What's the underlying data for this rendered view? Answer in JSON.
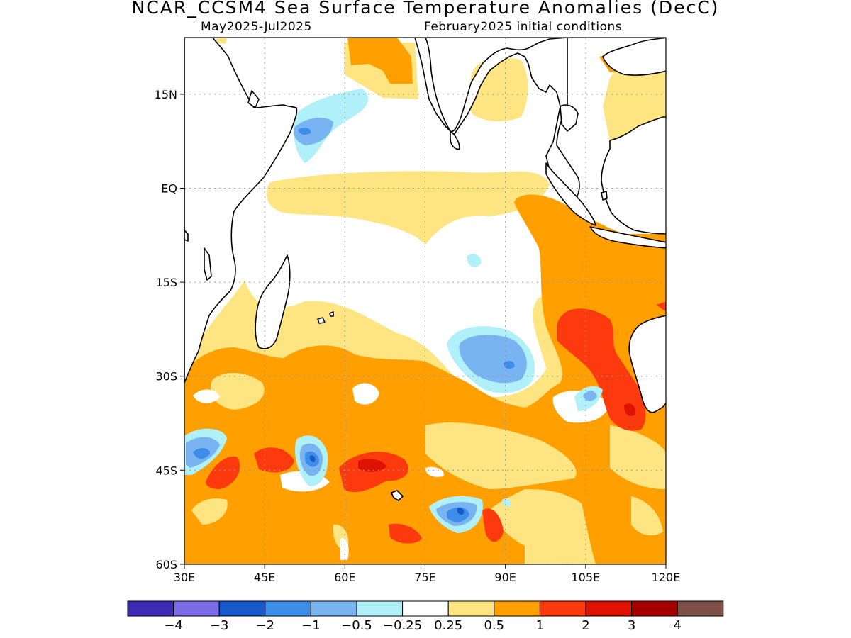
{
  "title": "NCAR_CCSM4 Sea Surface Temperature Anomalies (DecC)",
  "subtitle_left": "May2025-Jul2025",
  "subtitle_right": "February2025 initial conditions",
  "map": {
    "lon_range": [
      30,
      120
    ],
    "lat_range": [
      -60,
      24
    ],
    "x_ticks": [
      "30E",
      "45E",
      "60E",
      "75E",
      "90E",
      "105E",
      "120E"
    ],
    "y_ticks": [
      "15N",
      "EQ",
      "15S",
      "30S",
      "45S",
      "60S"
    ],
    "grid": true,
    "land_fill": "white",
    "coastline_color": "#000000"
  },
  "colorbar": {
    "colors": [
      "#3f2ab4",
      "#7b6be6",
      "#1759c8",
      "#3c8ee8",
      "#78b3f2",
      "#b0f0f8",
      "#ffffff",
      "#ffe482",
      "#ffa000",
      "#fd3a0e",
      "#dd1200",
      "#a50000",
      "#7d5048"
    ],
    "labels": [
      "-4",
      "-3",
      "-2",
      "-1",
      "-0.5",
      "-0.25",
      "0.25",
      "0.5",
      "1",
      "2",
      "3",
      "4"
    ]
  }
}
